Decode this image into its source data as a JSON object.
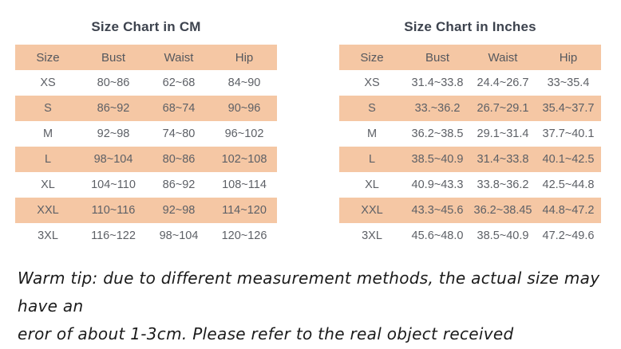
{
  "colors": {
    "row_highlight": "#f5c7a4",
    "cell_text": "#5d6066",
    "title_text": "#3d434e",
    "note_text": "#1b1b1b",
    "background": "#ffffff"
  },
  "tables": [
    {
      "title": "Size Chart in CM",
      "headers": [
        "Size",
        "Bust",
        "Waist",
        "Hip"
      ],
      "rows": [
        [
          "XS",
          "80~86",
          "62~68",
          "84~90"
        ],
        [
          "S",
          "86~92",
          "68~74",
          "90~96"
        ],
        [
          "M",
          "92~98",
          "74~80",
          "96~102"
        ],
        [
          "L",
          "98~104",
          "80~86",
          "102~108"
        ],
        [
          "XL",
          "104~110",
          "86~92",
          "108~114"
        ],
        [
          "XXL",
          "110~116",
          "92~98",
          "114~120"
        ],
        [
          "3XL",
          "116~122",
          "98~104",
          "120~126"
        ]
      ]
    },
    {
      "title": "Size Chart in Inches",
      "headers": [
        "Size",
        "Bust",
        "Waist",
        "Hip"
      ],
      "rows": [
        [
          "XS",
          "31.4~33.8",
          "24.4~26.7",
          "33~35.4"
        ],
        [
          "S",
          "33.~36.2",
          "26.7~29.1",
          "35.4~37.7"
        ],
        [
          "M",
          "36.2~38.5",
          "29.1~31.4",
          "37.7~40.1"
        ],
        [
          "L",
          "38.5~40.9",
          "31.4~33.8",
          "40.1~42.5"
        ],
        [
          "XL",
          "40.9~43.3",
          "33.8~36.2",
          "42.5~44.8"
        ],
        [
          "XXL",
          "43.3~45.6",
          "36.2~38.45",
          "44.8~47.2"
        ],
        [
          "3XL",
          "45.6~48.0",
          "38.5~40.9",
          "47.2~49.6"
        ]
      ]
    }
  ],
  "note": {
    "line1": "Warm tip: due to different measurement methods, the actual size may have an",
    "line2": "eror of about 1-3cm. Please refer to the real object received"
  }
}
